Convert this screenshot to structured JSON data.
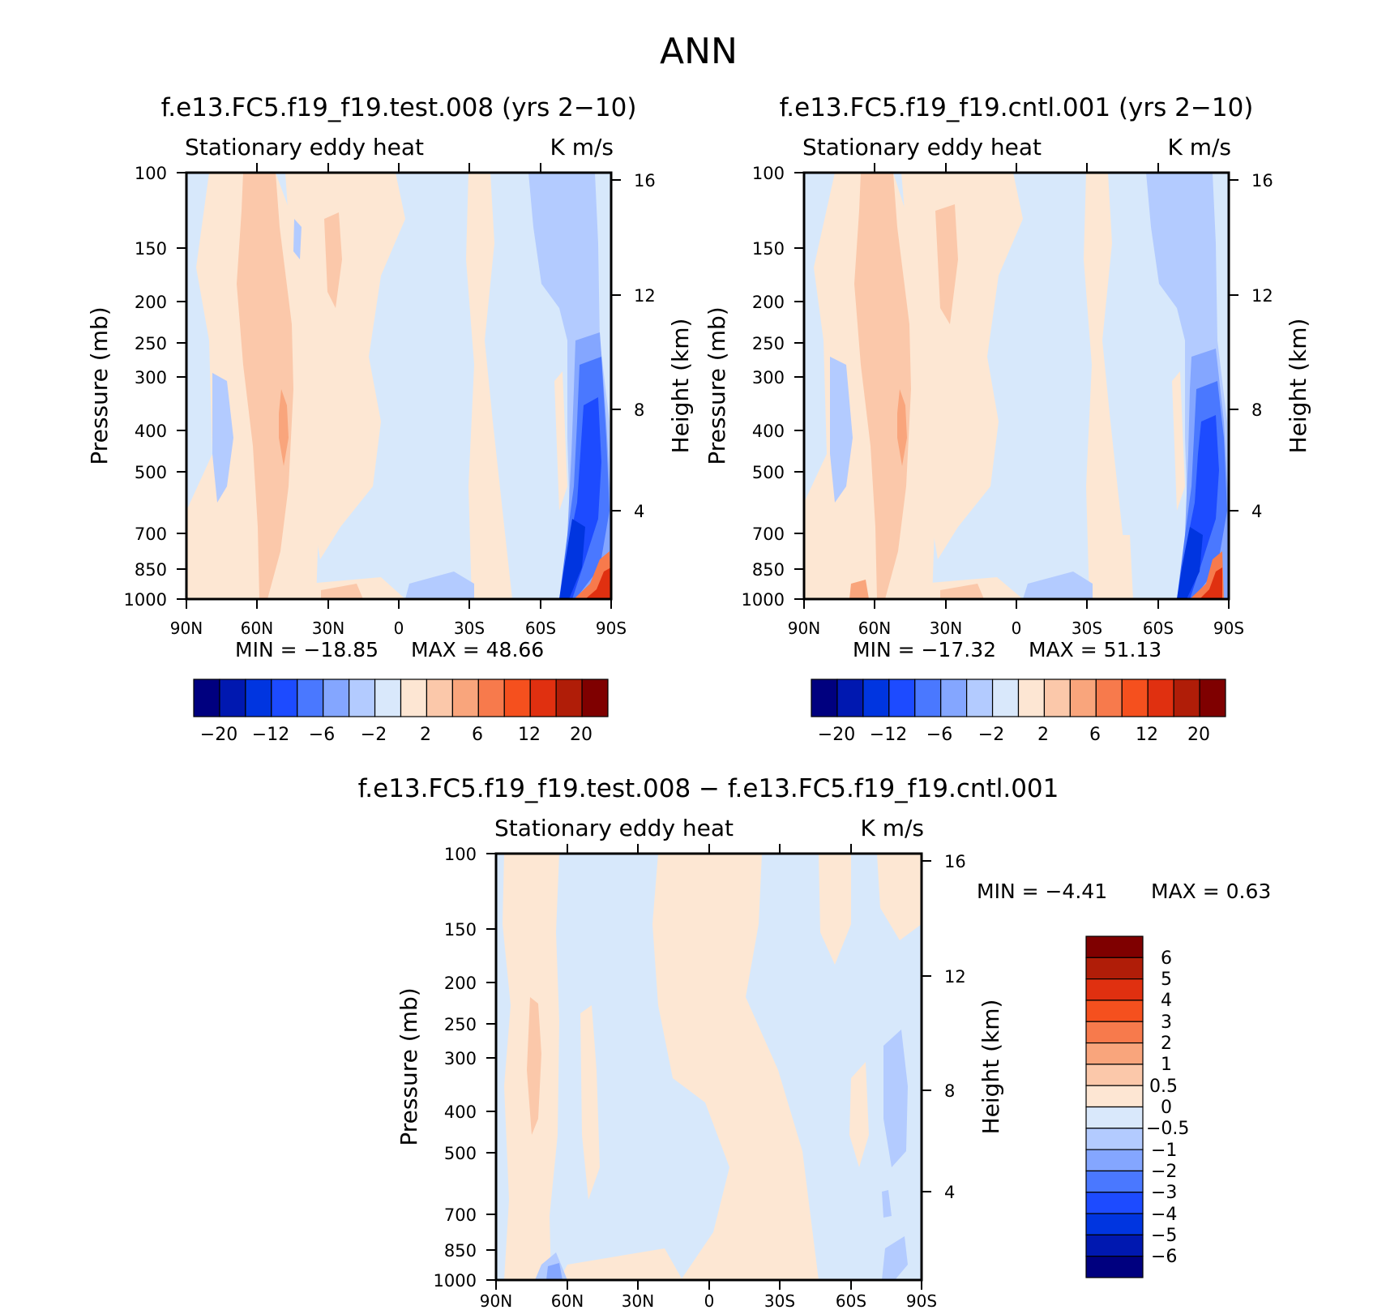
{
  "figure": {
    "title": "ANN"
  },
  "chart_data": [
    {
      "type": "heatmap",
      "title": "f.e13.FC5.f19_f19.test.008 (yrs 2−10)",
      "subtitle_left": "Stationary eddy heat",
      "subtitle_right": "K m/s",
      "xlabel": "",
      "ylabel": "Pressure (mb)",
      "ylabel_right": "Height (km)",
      "xticks": [
        "90N",
        "60N",
        "30N",
        "0",
        "30S",
        "60S",
        "90S"
      ],
      "yticks": [
        "100",
        "150",
        "200",
        "250",
        "300",
        "400",
        "500",
        "700",
        "850",
        "1000"
      ],
      "yticks_right": [
        "16",
        "12",
        "8",
        "4"
      ],
      "ylim": [
        1000,
        100
      ],
      "y_scale": "log",
      "min_label": "MIN = −18.85",
      "max_label": "MAX =  48.66",
      "colorbar_labels": [
        "−20",
        "−12",
        "−6",
        "−2",
        "2",
        "6",
        "12",
        "20"
      ],
      "colorbar_orientation": "horizontal"
    },
    {
      "type": "heatmap",
      "title": "f.e13.FC5.f19_f19.cntl.001 (yrs 2−10)",
      "subtitle_left": "Stationary eddy heat",
      "subtitle_right": "K m/s",
      "xlabel": "",
      "ylabel": "Pressure (mb)",
      "ylabel_right": "Height (km)",
      "xticks": [
        "90N",
        "60N",
        "30N",
        "0",
        "30S",
        "60S",
        "90S"
      ],
      "yticks": [
        "100",
        "150",
        "200",
        "250",
        "300",
        "400",
        "500",
        "700",
        "850",
        "1000"
      ],
      "yticks_right": [
        "16",
        "12",
        "8",
        "4"
      ],
      "ylim": [
        1000,
        100
      ],
      "y_scale": "log",
      "min_label": "MIN = −17.32",
      "max_label": "MAX =  51.13",
      "colorbar_labels": [
        "−20",
        "−12",
        "−6",
        "−2",
        "2",
        "6",
        "12",
        "20"
      ],
      "colorbar_orientation": "horizontal"
    },
    {
      "type": "heatmap",
      "title": "f.e13.FC5.f19_f19.test.008 − f.e13.FC5.f19_f19.cntl.001",
      "subtitle_left": "Stationary eddy heat",
      "subtitle_right": "K m/s",
      "xlabel": "",
      "ylabel": "Pressure (mb)",
      "ylabel_right": "Height (km)",
      "xticks": [
        "90N",
        "60N",
        "30N",
        "0",
        "30S",
        "60S",
        "90S"
      ],
      "yticks": [
        "100",
        "150",
        "200",
        "250",
        "300",
        "400",
        "500",
        "700",
        "850",
        "1000"
      ],
      "yticks_right": [
        "16",
        "12",
        "8",
        "4"
      ],
      "ylim": [
        1000,
        100
      ],
      "y_scale": "log",
      "min_label": "MIN =   −4.41",
      "max_label": "MAX =    0.63",
      "colorbar_labels": [
        "6",
        "5",
        "4",
        "3",
        "2",
        "1",
        "0.5",
        "0",
        "−0.5",
        "−1",
        "−2",
        "−3",
        "−4",
        "−5",
        "−6"
      ],
      "colorbar_orientation": "vertical"
    }
  ],
  "colors": {
    "blue_red_16": [
      "#00007f",
      "#0018b0",
      "#0035e0",
      "#1d4bff",
      "#4a78ff",
      "#84a6ff",
      "#b3cbff",
      "#d9e8fb",
      "#fde6d3",
      "#fbc8aa",
      "#f9a57c",
      "#f77a4c",
      "#f5501e",
      "#e03010",
      "#b01d08",
      "#7f0000"
    ],
    "background_blue": "#d7e8fb",
    "background_peach": "#fde7d3"
  }
}
